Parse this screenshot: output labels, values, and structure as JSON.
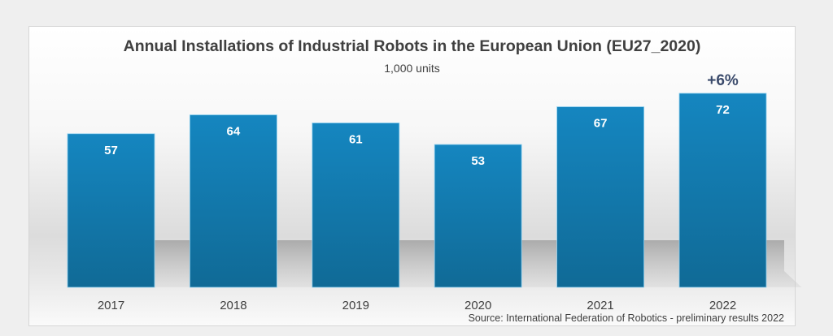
{
  "chart_data": {
    "type": "bar",
    "title": "Annual Installations of Industrial Robots in the European Union (EU27_2020)",
    "subtitle": "1,000 units",
    "categories": [
      "2017",
      "2018",
      "2019",
      "2020",
      "2021",
      "2022"
    ],
    "values": [
      57,
      64,
      61,
      53,
      67,
      72
    ],
    "value_labels": [
      "57",
      "64",
      "61",
      "53",
      "67",
      "72"
    ],
    "xlabel": "",
    "ylabel": "",
    "ylim": [
      0,
      72
    ],
    "grid": false,
    "legend": "none",
    "annotations": [
      {
        "category": "2022",
        "text": "+6%"
      }
    ],
    "source": "Source: International Federation of Robotics - preliminary results 2022",
    "bar_color": "#1586c0",
    "bar_color_bottom": "#106a96"
  }
}
